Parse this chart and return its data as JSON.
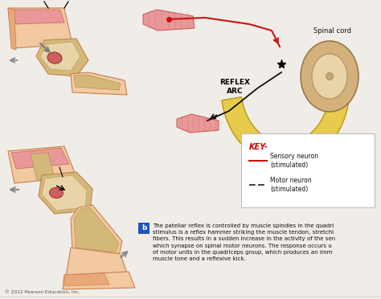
{
  "background_color": "#f0ede8",
  "key_title": "KEY-",
  "key_title_color": "#cc0000",
  "spinal_cord_label": "Spinal cord",
  "reflex_arc_label": "REFLEX\nARC",
  "label_b": "b",
  "body_text": "The patellar reflex is controlled by muscle spindles in the quadri\nstimulus is a reflex hammer striking the muscle tendon, stretchi\nfibers. This results in a sudden increase in the activity of the sen\nwhich synapse on spinal motor neurons. The response occurs u\nof motor units in the quadriceps group, which produces an imm\nmuscle tone and a reflexive kick.",
  "copyright": "© 2012 Pearson Education, Inc.",
  "fig_width": 4.74,
  "fig_height": 3.72,
  "dpi": 100,
  "colors": {
    "skin_light": "#f2c9a0",
    "skin_medium": "#e8a878",
    "skin_dark": "#c88050",
    "bone_yellow": "#d4b87a",
    "bone_light": "#e8d4a8",
    "muscle_red": "#cc6060",
    "muscle_light": "#e89898",
    "nerve_sensory": "#cc1111",
    "nerve_motor": "#111111",
    "spinal_cord_outer": "#e8c840",
    "spinal_cord_body": "#d4b07a",
    "spinal_cord_inner": "#e8d4a8",
    "cartilage": "#c8cc90",
    "text_dark": "#111111",
    "text_body": "#111111",
    "key_line_sensory": "#cc1111",
    "key_line_motor": "#444444"
  }
}
